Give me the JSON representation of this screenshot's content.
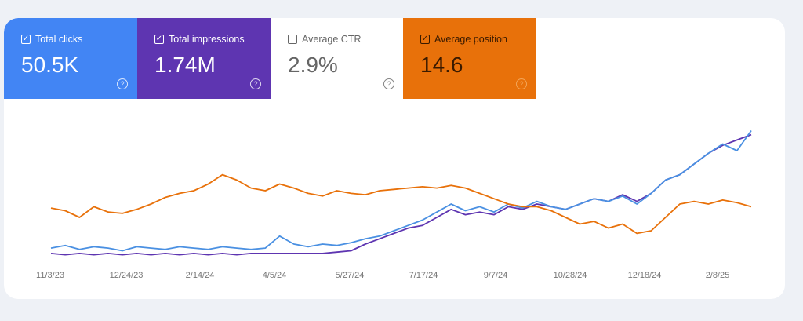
{
  "metrics": [
    {
      "label": "Total clicks",
      "value": "50.5K",
      "checked": true,
      "color": "#4285f4"
    },
    {
      "label": "Total impressions",
      "value": "1.74M",
      "checked": true,
      "color": "#5e35b1"
    },
    {
      "label": "Average CTR",
      "value": "2.9%",
      "checked": false,
      "color": "#ffffff"
    },
    {
      "label": "Average position",
      "value": "14.6",
      "checked": true,
      "color": "#e8710a"
    }
  ],
  "help_icon": "question-circle-icon",
  "chart_data": {
    "type": "line",
    "title": "",
    "xlabel": "",
    "ylabel": "",
    "x_tick_labels": [
      "11/3/23",
      "12/24/23",
      "2/14/24",
      "4/5/24",
      "5/27/24",
      "7/17/24",
      "9/7/24",
      "10/28/24",
      "12/18/24",
      "2/8/25"
    ],
    "x_range": [
      "11/3/23",
      "2/25/25"
    ],
    "y_axis_shown": false,
    "grid": false,
    "ylim": [
      0,
      100
    ],
    "series": [
      {
        "metric": "Total impressions",
        "color": "#5e35b1",
        "values": [
          3,
          2,
          3,
          2,
          3,
          2,
          3,
          2,
          3,
          2,
          3,
          2,
          3,
          2,
          3,
          3,
          3,
          3,
          3,
          3,
          4,
          5,
          10,
          14,
          18,
          22,
          24,
          30,
          36,
          32,
          34,
          32,
          38,
          36,
          40,
          38,
          36,
          40,
          44,
          42,
          47,
          42,
          48,
          58,
          62,
          70,
          78,
          84,
          88,
          92
        ]
      },
      {
        "metric": "Total clicks",
        "color": "#4a90e2",
        "values": [
          7,
          9,
          6,
          8,
          7,
          5,
          8,
          7,
          6,
          8,
          7,
          6,
          8,
          7,
          6,
          7,
          16,
          10,
          8,
          10,
          9,
          11,
          14,
          16,
          20,
          24,
          28,
          34,
          40,
          35,
          38,
          34,
          40,
          37,
          42,
          38,
          36,
          40,
          44,
          42,
          46,
          40,
          48,
          58,
          62,
          70,
          78,
          85,
          80,
          95
        ]
      },
      {
        "metric": "Average position",
        "color": "#e8710a",
        "values": [
          37,
          35,
          30,
          38,
          34,
          33,
          36,
          40,
          45,
          48,
          50,
          55,
          62,
          58,
          52,
          50,
          55,
          52,
          48,
          46,
          50,
          48,
          47,
          50,
          51,
          52,
          53,
          52,
          54,
          52,
          48,
          44,
          40,
          38,
          38,
          35,
          30,
          25,
          27,
          22,
          25,
          18,
          20,
          30,
          40,
          42,
          40,
          43,
          41,
          38
        ]
      }
    ]
  }
}
